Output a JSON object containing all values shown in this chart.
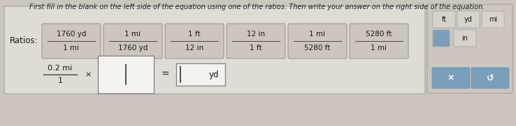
{
  "title": "First fill in the blank on the left side of the equation using one of the ratios. Then write your answer on the right side of the equation.",
  "ratios_label": "Ratios:",
  "ratios": [
    {
      "top": "1760 yd",
      "bottom": "1 mi"
    },
    {
      "top": "1 mi",
      "bottom": "1760 yd"
    },
    {
      "top": "1 ft",
      "bottom": "12 in"
    },
    {
      "top": "12 in",
      "bottom": "1 ft"
    },
    {
      "top": "1 mi",
      "bottom": "5280 ft"
    },
    {
      "top": "5280 ft",
      "bottom": "1 mi"
    }
  ],
  "eq_top": "0.2 mi",
  "eq_bottom": "1",
  "eq_symbol": "×",
  "eq_equals": "=",
  "eq_right_unit": "yd",
  "keypad_row1": [
    "ft",
    "yd",
    "mi"
  ],
  "keypad_row2_left": "",
  "keypad_row2_right": "in",
  "keypad_btn1": "×",
  "keypad_btn2": "↺",
  "bg_color": "#ccc6be",
  "main_box_color": "#e0dbd4",
  "main_box_border": "#aaaaaa",
  "ratio_box_fill": "#ccc6be",
  "ratio_box_border": "#999999",
  "blank_box_fill": "#f5f3f0",
  "blank_box_border": "#888888",
  "kp_bg": "#ccc6be",
  "kp_border": "#aaaaaa",
  "kp_cell_fill": "#d8d2cc",
  "kp_cell_border": "#aaaaaa",
  "kp_blue": "#7a9fbb",
  "kp_blue_dark": "#6a8fab",
  "text_color": "#1a1a1a",
  "white_text": "#ffffff",
  "title_color": "#222222"
}
